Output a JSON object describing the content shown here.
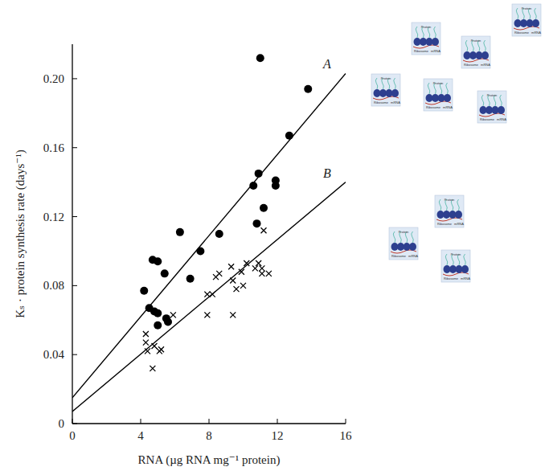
{
  "chart_data": {
    "type": "scatter",
    "x_label": "RNA (µg RNA mg⁻¹ protein)",
    "y_label": "Kₛ · protein synthesis rate (days⁻¹)",
    "annotations": [
      "Protein",
      "Ribosome",
      "mRNA"
    ],
    "xlim": [
      0,
      16
    ],
    "xticks": [
      0,
      4,
      8,
      12,
      16
    ],
    "ylim": [
      0,
      0.22
    ],
    "yticks": [
      0,
      0.04,
      0.08,
      0.12,
      0.16,
      {
        "value": 0.2,
        "label": "0.20"
      }
    ],
    "grid": false,
    "series": [
      {
        "type": "scatter",
        "marker": "circle",
        "color": "#000000",
        "x": [
          11.0,
          13.8,
          12.7,
          10.9,
          10.6,
          11.9,
          11.9,
          11.2,
          10.8,
          7.5,
          8.6,
          6.3,
          6.9,
          4.2,
          4.7,
          5.0,
          5.4,
          4.5,
          4.8,
          5.0,
          5.0,
          5.5,
          5.6
        ],
        "values": [
          0.212,
          0.194,
          0.167,
          0.145,
          0.138,
          0.141,
          0.138,
          0.125,
          0.116,
          0.1,
          0.11,
          0.111,
          0.084,
          0.077,
          0.095,
          0.094,
          0.087,
          0.067,
          0.065,
          0.064,
          0.057,
          0.061,
          0.059
        ]
      },
      {
        "type": "scatter",
        "marker": "cross",
        "color": "#000000",
        "x": [
          4.3,
          4.3,
          4.4,
          4.7,
          4.8,
          5.1,
          5.2,
          5.9,
          7.9,
          7.9,
          8.2,
          8.4,
          8.6,
          9.4,
          9.3,
          9.4,
          9.6,
          9.9,
          10.2,
          10.0,
          10.7,
          10.9,
          11.1,
          11.2,
          11.1,
          11.5
        ],
        "values": [
          0.052,
          0.047,
          0.042,
          0.032,
          0.045,
          0.042,
          0.043,
          0.063,
          0.063,
          0.075,
          0.075,
          0.085,
          0.087,
          0.083,
          0.091,
          0.063,
          0.078,
          0.088,
          0.093,
          0.08,
          0.09,
          0.093,
          0.09,
          0.112,
          0.087,
          0.087
        ]
      },
      {
        "type": "line",
        "name": "A",
        "color": "#000000",
        "x": [
          0,
          16
        ],
        "values": [
          0.015,
          0.203
        ]
      },
      {
        "type": "line",
        "name": "B",
        "color": "#000000",
        "x": [
          0,
          16
        ],
        "values": [
          0.007,
          0.14
        ]
      }
    ]
  }
}
